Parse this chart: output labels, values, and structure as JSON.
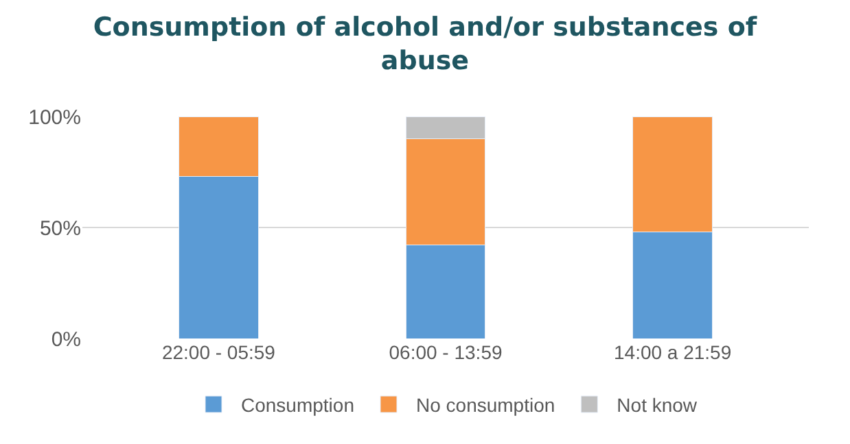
{
  "chart_data": {
    "type": "bar",
    "title": "Consumption of alcohol and/or substances of abuse",
    "stacked": true,
    "categories": [
      "22:00 - 05:59",
      "06:00 - 13:59",
      "14:00 a 21:59"
    ],
    "series": [
      {
        "name": "Consumption",
        "color": "#5b9bd5",
        "values": [
          73,
          42,
          48
        ]
      },
      {
        "name": "No consumption",
        "color": "#f79646",
        "values": [
          27,
          48,
          52
        ]
      },
      {
        "name": "Not know",
        "color": "#bfbfbf",
        "values": [
          null,
          10,
          null
        ]
      }
    ],
    "ylim": [
      0,
      100
    ],
    "yticks": [
      {
        "value": 0,
        "label": "0%"
      },
      {
        "value": 50,
        "label": "50%"
      },
      {
        "value": 100,
        "label": "100%"
      }
    ],
    "grid": "y",
    "legend": "bottom"
  }
}
